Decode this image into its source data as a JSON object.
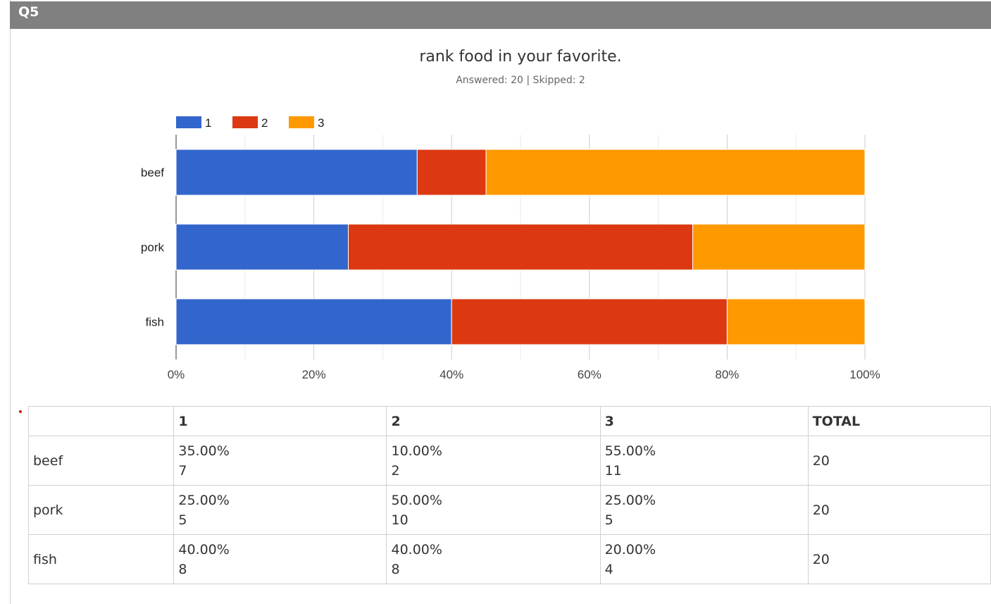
{
  "question": {
    "label": "Q5",
    "title": "rank food in your favorite.",
    "answered_skipped": "Answered: 20 | Skipped: 2"
  },
  "colors": {
    "rank1": "#3366CC",
    "rank2": "#DC3912",
    "rank3": "#FF9900"
  },
  "chart_data": {
    "type": "bar",
    "orientation": "horizontal",
    "stacked": true,
    "categories": [
      "beef",
      "pork",
      "fish"
    ],
    "series": [
      {
        "name": "1",
        "values": [
          35,
          25,
          40
        ]
      },
      {
        "name": "2",
        "values": [
          10,
          50,
          40
        ]
      },
      {
        "name": "3",
        "values": [
          55,
          25,
          20
        ]
      }
    ],
    "xlim": [
      0,
      100
    ],
    "xticks": [
      "0%",
      "20%",
      "40%",
      "60%",
      "80%",
      "100%"
    ],
    "legend": "top-left",
    "grid": true
  },
  "table": {
    "headers": [
      "",
      "1",
      "2",
      "3",
      "TOTAL"
    ],
    "rows": [
      {
        "label": "beef",
        "cells": [
          [
            "35.00%",
            "7"
          ],
          [
            "10.00%",
            "2"
          ],
          [
            "55.00%",
            "11"
          ]
        ],
        "total": "20"
      },
      {
        "label": "pork",
        "cells": [
          [
            "25.00%",
            "5"
          ],
          [
            "50.00%",
            "10"
          ],
          [
            "25.00%",
            "5"
          ]
        ],
        "total": "20"
      },
      {
        "label": "fish",
        "cells": [
          [
            "40.00%",
            "8"
          ],
          [
            "40.00%",
            "8"
          ],
          [
            "20.00%",
            "4"
          ]
        ],
        "total": "20"
      }
    ]
  }
}
